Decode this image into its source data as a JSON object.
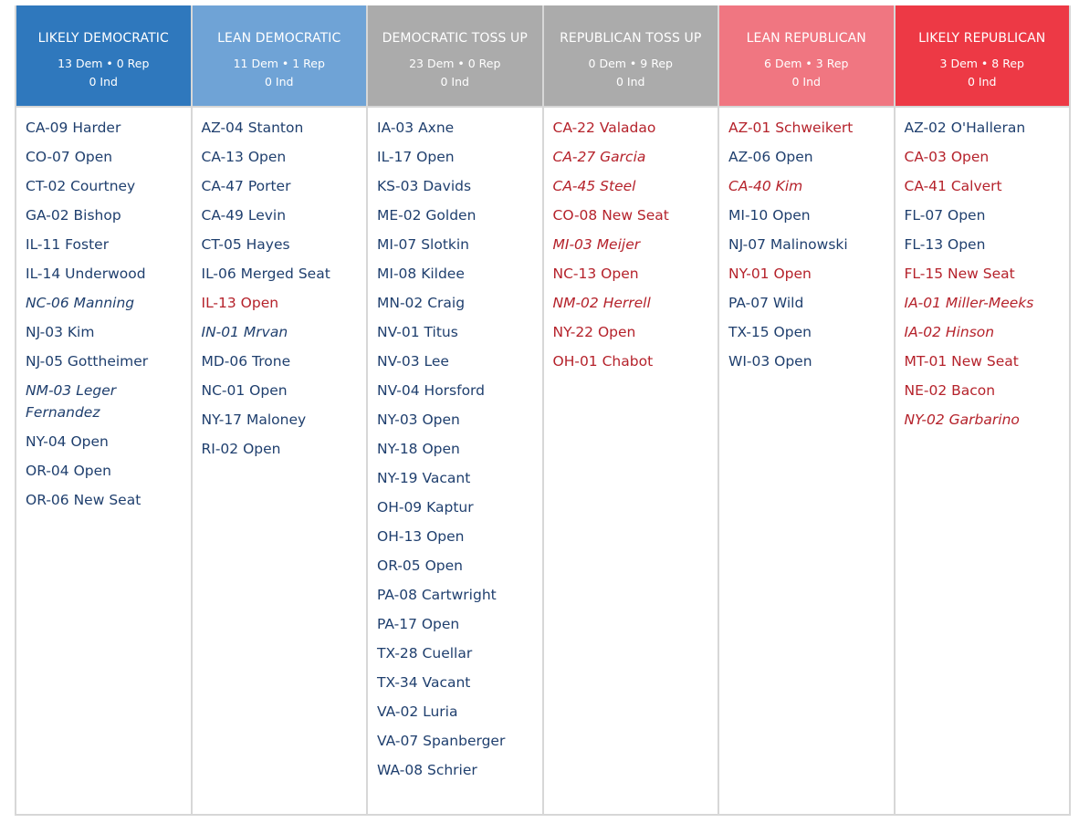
{
  "colors": {
    "likely_dem": "#2f78bd",
    "lean_dem": "#6fa3d6",
    "tossup_dem": "#ababab",
    "tossup_rep": "#ababab",
    "lean_rep": "#f07681",
    "likely_rep": "#ed3945",
    "dem_text": "#1f3f6e",
    "rep_text": "#b5222b"
  },
  "columns": [
    {
      "title": "LIKELY DEMOCRATIC",
      "counts": "13 Dem • 0 Rep",
      "ind": "0 Ind",
      "races": [
        {
          "label": "CA-09 Harder",
          "party": "dem",
          "italic": false
        },
        {
          "label": "CO-07 Open",
          "party": "dem",
          "italic": false
        },
        {
          "label": "CT-02 Courtney",
          "party": "dem",
          "italic": false
        },
        {
          "label": "GA-02 Bishop",
          "party": "dem",
          "italic": false
        },
        {
          "label": "IL-11 Foster",
          "party": "dem",
          "italic": false
        },
        {
          "label": "IL-14 Underwood",
          "party": "dem",
          "italic": false
        },
        {
          "label": "NC-06 Manning",
          "party": "dem",
          "italic": true
        },
        {
          "label": "NJ-03 Kim",
          "party": "dem",
          "italic": false
        },
        {
          "label": "NJ-05 Gottheimer",
          "party": "dem",
          "italic": false
        },
        {
          "label": "NM-03 Leger Fernandez",
          "party": "dem",
          "italic": true
        },
        {
          "label": "NY-04 Open",
          "party": "dem",
          "italic": false
        },
        {
          "label": "OR-04 Open",
          "party": "dem",
          "italic": false
        },
        {
          "label": "OR-06 New Seat",
          "party": "dem",
          "italic": false
        }
      ]
    },
    {
      "title": "LEAN DEMOCRATIC",
      "counts": "11 Dem • 1 Rep",
      "ind": "0 Ind",
      "races": [
        {
          "label": "AZ-04 Stanton",
          "party": "dem",
          "italic": false
        },
        {
          "label": "CA-13 Open",
          "party": "dem",
          "italic": false
        },
        {
          "label": "CA-47 Porter",
          "party": "dem",
          "italic": false
        },
        {
          "label": "CA-49 Levin",
          "party": "dem",
          "italic": false
        },
        {
          "label": "CT-05 Hayes",
          "party": "dem",
          "italic": false
        },
        {
          "label": "IL-06 Merged Seat",
          "party": "dem",
          "italic": false
        },
        {
          "label": "IL-13 Open",
          "party": "rep",
          "italic": false
        },
        {
          "label": "IN-01 Mrvan",
          "party": "dem",
          "italic": true
        },
        {
          "label": "MD-06 Trone",
          "party": "dem",
          "italic": false
        },
        {
          "label": "NC-01 Open",
          "party": "dem",
          "italic": false
        },
        {
          "label": "NY-17 Maloney",
          "party": "dem",
          "italic": false
        },
        {
          "label": "RI-02 Open",
          "party": "dem",
          "italic": false
        }
      ]
    },
    {
      "title": "DEMOCRATIC TOSS UP",
      "counts": "23 Dem • 0 Rep",
      "ind": "0 Ind",
      "races": [
        {
          "label": "IA-03 Axne",
          "party": "dem",
          "italic": false
        },
        {
          "label": "IL-17 Open",
          "party": "dem",
          "italic": false
        },
        {
          "label": "KS-03 Davids",
          "party": "dem",
          "italic": false
        },
        {
          "label": "ME-02 Golden",
          "party": "dem",
          "italic": false
        },
        {
          "label": "MI-07 Slotkin",
          "party": "dem",
          "italic": false
        },
        {
          "label": "MI-08 Kildee",
          "party": "dem",
          "italic": false
        },
        {
          "label": "MN-02 Craig",
          "party": "dem",
          "italic": false
        },
        {
          "label": "NV-01 Titus",
          "party": "dem",
          "italic": false
        },
        {
          "label": "NV-03 Lee",
          "party": "dem",
          "italic": false
        },
        {
          "label": "NV-04 Horsford",
          "party": "dem",
          "italic": false
        },
        {
          "label": "NY-03 Open",
          "party": "dem",
          "italic": false
        },
        {
          "label": "NY-18 Open",
          "party": "dem",
          "italic": false
        },
        {
          "label": "NY-19 Vacant",
          "party": "dem",
          "italic": false
        },
        {
          "label": "OH-09 Kaptur",
          "party": "dem",
          "italic": false
        },
        {
          "label": "OH-13 Open",
          "party": "dem",
          "italic": false
        },
        {
          "label": "OR-05 Open",
          "party": "dem",
          "italic": false
        },
        {
          "label": "PA-08 Cartwright",
          "party": "dem",
          "italic": false
        },
        {
          "label": "PA-17 Open",
          "party": "dem",
          "italic": false
        },
        {
          "label": "TX-28 Cuellar",
          "party": "dem",
          "italic": false
        },
        {
          "label": "TX-34 Vacant",
          "party": "dem",
          "italic": false
        },
        {
          "label": "VA-02 Luria",
          "party": "dem",
          "italic": false
        },
        {
          "label": "VA-07 Spanberger",
          "party": "dem",
          "italic": false
        },
        {
          "label": "WA-08 Schrier",
          "party": "dem",
          "italic": false
        }
      ]
    },
    {
      "title": "REPUBLICAN TOSS UP",
      "counts": "0 Dem • 9 Rep",
      "ind": "0 Ind",
      "races": [
        {
          "label": "CA-22 Valadao",
          "party": "rep",
          "italic": false
        },
        {
          "label": "CA-27 Garcia",
          "party": "rep",
          "italic": true
        },
        {
          "label": "CA-45 Steel",
          "party": "rep",
          "italic": true
        },
        {
          "label": "CO-08 New Seat",
          "party": "rep",
          "italic": false
        },
        {
          "label": "MI-03 Meijer",
          "party": "rep",
          "italic": true
        },
        {
          "label": "NC-13 Open",
          "party": "rep",
          "italic": false
        },
        {
          "label": "NM-02 Herrell",
          "party": "rep",
          "italic": true
        },
        {
          "label": "NY-22 Open",
          "party": "rep",
          "italic": false
        },
        {
          "label": "OH-01 Chabot",
          "party": "rep",
          "italic": false
        }
      ]
    },
    {
      "title": "LEAN REPUBLICAN",
      "counts": "6 Dem • 3 Rep",
      "ind": "0 Ind",
      "races": [
        {
          "label": "AZ-01 Schweikert",
          "party": "rep",
          "italic": false
        },
        {
          "label": "AZ-06 Open",
          "party": "dem",
          "italic": false
        },
        {
          "label": "CA-40 Kim",
          "party": "rep",
          "italic": true
        },
        {
          "label": "MI-10 Open",
          "party": "dem",
          "italic": false
        },
        {
          "label": "NJ-07 Malinowski",
          "party": "dem",
          "italic": false
        },
        {
          "label": "NY-01 Open",
          "party": "rep",
          "italic": false
        },
        {
          "label": "PA-07 Wild",
          "party": "dem",
          "italic": false
        },
        {
          "label": "TX-15 Open",
          "party": "dem",
          "italic": false
        },
        {
          "label": "WI-03 Open",
          "party": "dem",
          "italic": false
        }
      ]
    },
    {
      "title": "LIKELY REPUBLICAN",
      "counts": "3 Dem • 8 Rep",
      "ind": "0 Ind",
      "races": [
        {
          "label": "AZ-02 O'Halleran",
          "party": "dem",
          "italic": false
        },
        {
          "label": "CA-03 Open",
          "party": "rep",
          "italic": false
        },
        {
          "label": "CA-41 Calvert",
          "party": "rep",
          "italic": false
        },
        {
          "label": "FL-07 Open",
          "party": "dem",
          "italic": false
        },
        {
          "label": "FL-13 Open",
          "party": "dem",
          "italic": false
        },
        {
          "label": "FL-15 New Seat",
          "party": "rep",
          "italic": false
        },
        {
          "label": "IA-01 Miller-Meeks",
          "party": "rep",
          "italic": true
        },
        {
          "label": "IA-02 Hinson",
          "party": "rep",
          "italic": true
        },
        {
          "label": "MT-01 New Seat",
          "party": "rep",
          "italic": false
        },
        {
          "label": "NE-02 Bacon",
          "party": "rep",
          "italic": false
        },
        {
          "label": "NY-02 Garbarino",
          "party": "rep",
          "italic": true
        }
      ]
    }
  ]
}
